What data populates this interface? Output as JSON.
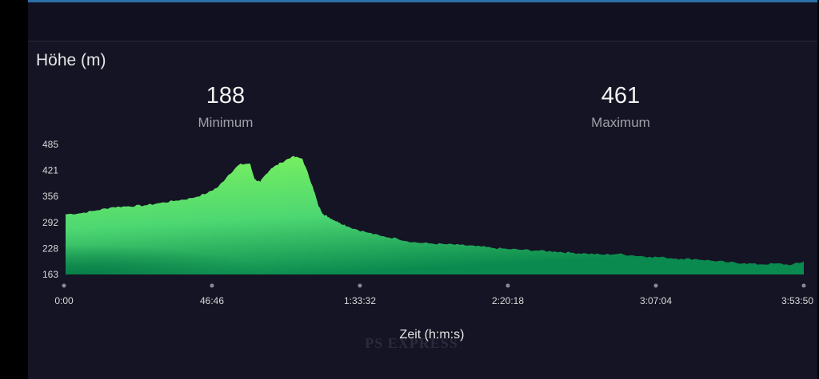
{
  "title": "Höhe (m)",
  "stats": {
    "min_value": "188",
    "min_label": "Minimum",
    "max_value": "461",
    "max_label": "Maximum"
  },
  "watermark": "PS EXPRESS",
  "colors": {
    "background": "#141424",
    "fill_top": "#7df25c",
    "fill_bottom": "#0a8a4e",
    "text": "#e6e6e6"
  },
  "chart_data": {
    "type": "area",
    "title": "Höhe (m)",
    "xlabel": "Zeit (h:m:s)",
    "ylabel": "",
    "y_ticks": [
      "485",
      "421",
      "356",
      "292",
      "228",
      "163"
    ],
    "x_ticks": [
      "0:00",
      "46:46",
      "1:33:32",
      "2:20:18",
      "3:07:04",
      "3:53:50"
    ],
    "ylim": [
      163,
      485
    ],
    "xlim_seconds": [
      0,
      14030
    ],
    "grid": false,
    "x_seconds": [
      0,
      300,
      600,
      900,
      1200,
      1500,
      1800,
      2100,
      2400,
      2700,
      2900,
      3100,
      3300,
      3500,
      3600,
      3700,
      3800,
      3900,
      4100,
      4300,
      4500,
      4700,
      4800,
      4900,
      5000,
      5100,
      5200,
      5400,
      5700,
      6000,
      6300,
      6600,
      6900,
      7200,
      7500,
      7800,
      8100,
      8400,
      8700,
      9000,
      9300,
      9600,
      9900,
      10200,
      10500,
      10800,
      11100,
      11400,
      11700,
      12000,
      12300,
      12600,
      12900,
      13200,
      13500,
      13800,
      14030
    ],
    "values": [
      312,
      315,
      322,
      330,
      332,
      334,
      340,
      346,
      352,
      365,
      380,
      410,
      435,
      438,
      398,
      392,
      410,
      425,
      440,
      455,
      450,
      380,
      335,
      312,
      305,
      298,
      292,
      280,
      268,
      258,
      252,
      243,
      240,
      238,
      236,
      233,
      229,
      226,
      224,
      222,
      220,
      217,
      215,
      212,
      214,
      210,
      207,
      205,
      202,
      201,
      197,
      193,
      191,
      188,
      190,
      187,
      195
    ]
  }
}
